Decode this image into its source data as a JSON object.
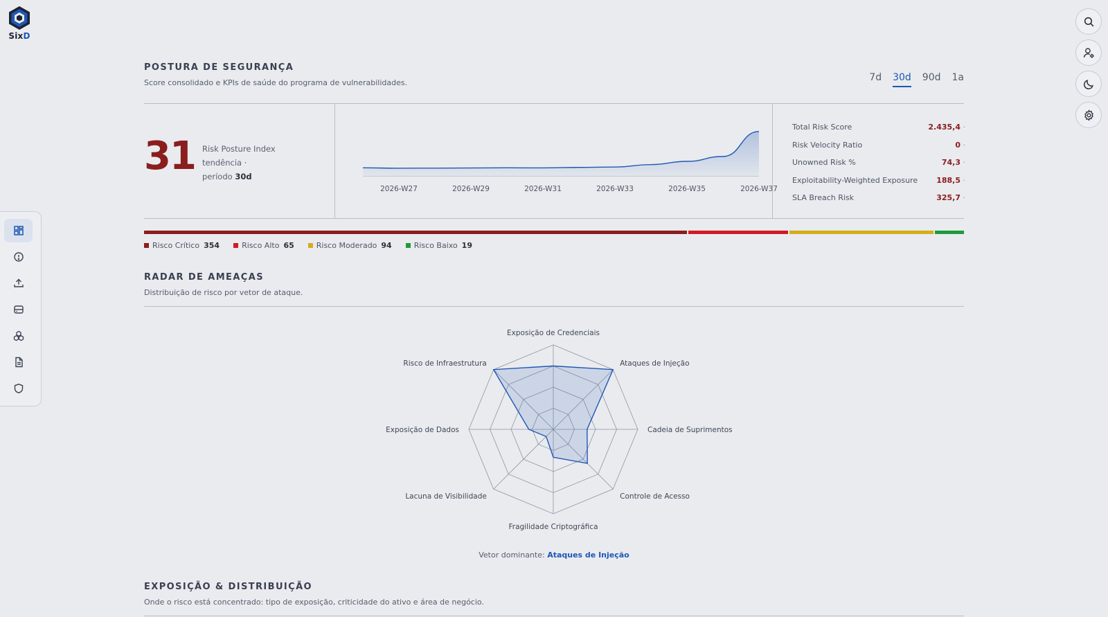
{
  "brand": {
    "name_part1": "Six",
    "name_part2": "D"
  },
  "nav": [
    {
      "icon": "dashboard-icon",
      "active": true
    },
    {
      "icon": "alert-circle-icon",
      "active": false
    },
    {
      "icon": "upload-icon",
      "active": false
    },
    {
      "icon": "server-icon",
      "active": false
    },
    {
      "icon": "components-icon",
      "active": false
    },
    {
      "icon": "document-icon",
      "active": false
    },
    {
      "icon": "shield-icon",
      "active": false
    }
  ],
  "right_actions": [
    "search-icon",
    "user-settings-icon",
    "moon-icon",
    "gear-icon"
  ],
  "posture": {
    "title": "POSTURA DE SEGURANÇA",
    "subtitle": "Score consolidado e KPIs de saúde do programa de vulnerabilidades.",
    "periods": [
      "7d",
      "30d",
      "90d",
      "1a"
    ],
    "active_period": "30d",
    "score": "31",
    "label_line1": "Risk Posture Index",
    "label_line2": "tendência ·",
    "label_line3_prefix": "período ",
    "label_line3_value": "30d"
  },
  "kpis": [
    {
      "label": "Total Risk Score",
      "value": "2.435,4"
    },
    {
      "label": "Risk Velocity Ratio",
      "value": "0"
    },
    {
      "label": "Unowned Risk %",
      "value": "74,3"
    },
    {
      "label": "Exploitability-Weighted Exposure",
      "value": "188,5"
    },
    {
      "label": "SLA Breach Risk",
      "value": "325,7"
    }
  ],
  "chart_data": [
    {
      "type": "area",
      "x": [
        "2026-W26",
        "2026-W27",
        "2026-W28",
        "2026-W29",
        "2026-W30",
        "2026-W31",
        "2026-W32",
        "2026-W33",
        "2026-W34",
        "2026-W35",
        "2026-W36",
        "2026-W37"
      ],
      "values": [
        10,
        9.5,
        9.6,
        9.8,
        10,
        9.9,
        10.5,
        11,
        14,
        18,
        24,
        55
      ],
      "tick_labels": [
        "2026-W27",
        "2026-W29",
        "2026-W31",
        "2026-W33",
        "2026-W35",
        "2026-W37"
      ],
      "ylim": [
        0,
        60
      ],
      "color": "#1f56b4"
    },
    {
      "type": "radar",
      "axes": [
        "Exposição de Credenciais",
        "Ataques de Injeção",
        "Cadeia de Suprimentos",
        "Controle de Acesso",
        "Fragilidade Criptográfica",
        "Lacuna de Visibilidade",
        "Exposição de Dados",
        "Risco de Infraestrutura"
      ],
      "values": [
        0.75,
        1.0,
        0.4,
        0.57,
        0.33,
        0.12,
        0.29,
        1.0
      ],
      "rings": 4,
      "color": "#1f56b4"
    }
  ],
  "risk_distribution": [
    {
      "label": "Risco Crítico",
      "count": "354",
      "value": 354,
      "color": "#8e1c1f"
    },
    {
      "label": "Risco Alto",
      "count": "65",
      "value": 65,
      "color": "#d11a24"
    },
    {
      "label": "Risco Moderado",
      "count": "94",
      "value": 94,
      "color": "#d6ac19"
    },
    {
      "label": "Risco Baixo",
      "count": "19",
      "value": 19,
      "color": "#1e9b3c"
    }
  ],
  "radar": {
    "title": "RADAR DE AMEAÇAS",
    "subtitle": "Distribuição de risco por vetor de ataque.",
    "dominant_prefix": "Vetor dominante: ",
    "dominant_value": "Ataques de Injeção"
  },
  "exposure": {
    "title": "EXPOSIÇÃO & DISTRIBUIÇÃO",
    "subtitle": "Onde o risco está concentrado: tipo de exposição, criticidade do ativo e área de negócio."
  }
}
